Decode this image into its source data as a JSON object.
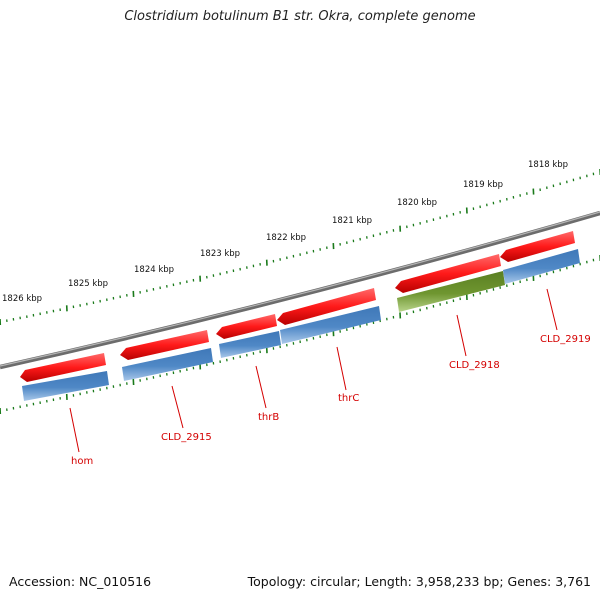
{
  "title": "Clostridium botulinum B1 str. Okra, complete genome",
  "footer": {
    "accession": "Accession: NC_010516",
    "topology": "Topology: circular; Length: 3,958,233 bp; Genes: 3,761"
  },
  "colors": {
    "backbone": "#777777",
    "gene_red": "#ff1a1a",
    "cds_blue": "#4f88c6",
    "cds_green": "#6f9630",
    "tick": "#1a7a1a",
    "label": "#d40000"
  },
  "kbp_labels": [
    "1818 kbp",
    "1819 kbp",
    "1820 kbp",
    "1821 kbp",
    "1822 kbp",
    "1823 kbp",
    "1824 kbp",
    "1825 kbp",
    "1826 kbp"
  ],
  "genes": [
    {
      "label": "hom"
    },
    {
      "label": "CLD_2915"
    },
    {
      "label": "thrB"
    },
    {
      "label": "thrC"
    },
    {
      "label": "CLD_2918"
    },
    {
      "label": "CLD_2919"
    }
  ]
}
